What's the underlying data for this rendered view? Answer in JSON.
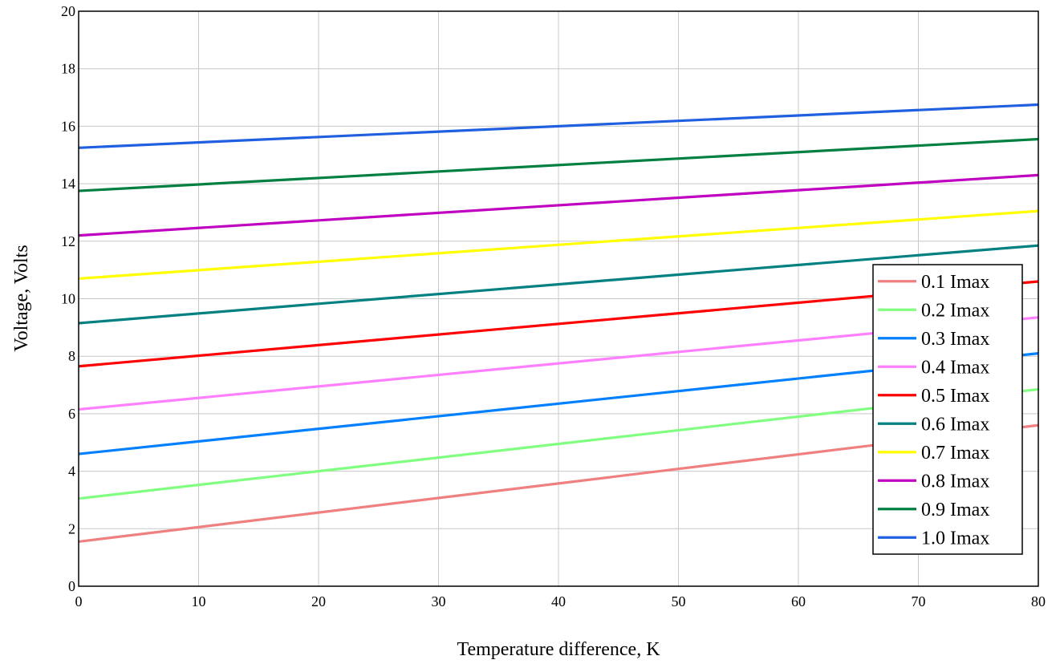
{
  "chart_data": {
    "type": "line",
    "title": "",
    "xlabel": "Temperature difference, K",
    "ylabel": "Voltage, Volts",
    "xlim": [
      0,
      80
    ],
    "ylim": [
      0,
      20
    ],
    "x_ticks": [
      "0",
      "10",
      "20",
      "30",
      "40",
      "50",
      "60",
      "70",
      "80"
    ],
    "y_ticks": [
      "0",
      "2",
      "4",
      "6",
      "8",
      "10",
      "12",
      "14",
      "16",
      "18",
      "20"
    ],
    "grid": true,
    "legend_position": "bottom-right",
    "x": [
      0,
      80
    ],
    "series": [
      {
        "name": "0.1 Imax",
        "color": "#f08080",
        "values": [
          1.55,
          5.6
        ]
      },
      {
        "name": "0.2 Imax",
        "color": "#80ff80",
        "values": [
          3.05,
          6.85
        ]
      },
      {
        "name": "0.3 Imax",
        "color": "#0080ff",
        "values": [
          4.6,
          8.1
        ]
      },
      {
        "name": "0.4 Imax",
        "color": "#ff80ff",
        "values": [
          6.15,
          9.35
        ]
      },
      {
        "name": "0.5 Imax",
        "color": "#ff0000",
        "values": [
          7.65,
          10.6
        ]
      },
      {
        "name": "0.6 Imax",
        "color": "#008080",
        "values": [
          9.15,
          11.85
        ]
      },
      {
        "name": "0.7 Imax",
        "color": "#ffff00",
        "values": [
          10.7,
          13.05
        ]
      },
      {
        "name": "0.8 Imax",
        "color": "#c000c0",
        "values": [
          12.2,
          14.3
        ]
      },
      {
        "name": "0.9 Imax",
        "color": "#008040",
        "values": [
          13.75,
          15.55
        ]
      },
      {
        "name": "1.0 Imax",
        "color": "#2060e0",
        "values": [
          15.25,
          16.75
        ]
      }
    ]
  }
}
